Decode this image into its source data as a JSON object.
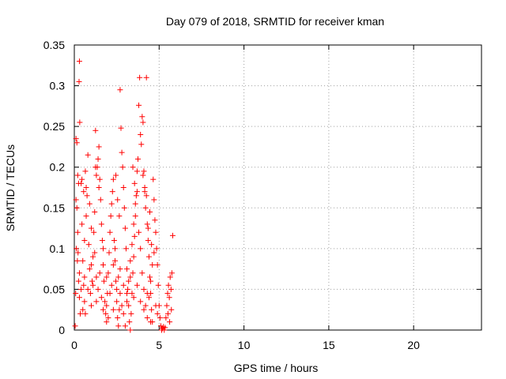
{
  "chart_data": {
    "type": "scatter",
    "title": "Day 079 of 2018, SRMTID for receiver kman",
    "xlabel": "GPS time / hours",
    "ylabel": "SRMTID / TECUs",
    "xlim": [
      0,
      24
    ],
    "ylim": [
      0,
      0.35
    ],
    "xticks": [
      0,
      5,
      10,
      15,
      20
    ],
    "xtick_labels": [
      "0",
      "5",
      "10",
      "15",
      "20"
    ],
    "yticks": [
      0,
      0.05,
      0.1,
      0.15,
      0.2,
      0.25,
      0.3,
      0.35
    ],
    "ytick_labels": [
      "0",
      "0.05",
      "0.1",
      "0.15",
      "0.2",
      "0.25",
      "0.3",
      "0.35"
    ],
    "grid": true,
    "marker": "plus",
    "marker_color": "#ff0000",
    "series": [
      {
        "name": "SRMTID",
        "points": [
          [
            0.05,
            0.005
          ],
          [
            0.1,
            0.235
          ],
          [
            0.15,
            0.23
          ],
          [
            0.2,
            0.19
          ],
          [
            0.25,
            0.18
          ],
          [
            0.3,
            0.33
          ],
          [
            0.28,
            0.305
          ],
          [
            0.32,
            0.255
          ],
          [
            0.1,
            0.16
          ],
          [
            0.15,
            0.15
          ],
          [
            0.2,
            0.12
          ],
          [
            0.12,
            0.1
          ],
          [
            0.18,
            0.085
          ],
          [
            0.25,
            0.06
          ],
          [
            0.3,
            0.04
          ],
          [
            0.35,
            0.02
          ],
          [
            0.08,
            0.045
          ],
          [
            0.22,
            0.095
          ],
          [
            0.4,
            0.18
          ],
          [
            0.45,
            0.13
          ],
          [
            0.5,
            0.085
          ],
          [
            0.55,
            0.055
          ],
          [
            0.6,
            0.035
          ],
          [
            0.65,
            0.02
          ],
          [
            0.7,
            0.175
          ],
          [
            0.75,
            0.165
          ],
          [
            0.8,
            0.215
          ],
          [
            0.85,
            0.105
          ],
          [
            0.9,
            0.075
          ],
          [
            0.95,
            0.045
          ],
          [
            1.0,
            0.03
          ],
          [
            1.05,
            0.06
          ],
          [
            1.1,
            0.09
          ],
          [
            1.15,
            0.12
          ],
          [
            1.2,
            0.145
          ],
          [
            1.25,
            0.245
          ],
          [
            1.3,
            0.19
          ],
          [
            1.35,
            0.2
          ],
          [
            1.4,
            0.21
          ],
          [
            1.45,
            0.225
          ],
          [
            1.5,
            0.185
          ],
          [
            1.55,
            0.16
          ],
          [
            1.6,
            0.13
          ],
          [
            1.65,
            0.11
          ],
          [
            1.7,
            0.08
          ],
          [
            1.75,
            0.06
          ],
          [
            1.8,
            0.035
          ],
          [
            1.85,
            0.02
          ],
          [
            1.9,
            0.01
          ],
          [
            1.95,
            0.045
          ],
          [
            2.0,
            0.07
          ],
          [
            2.05,
            0.095
          ],
          [
            2.1,
            0.12
          ],
          [
            2.15,
            0.14
          ],
          [
            2.2,
            0.155
          ],
          [
            2.25,
            0.17
          ],
          [
            2.3,
            0.185
          ],
          [
            2.35,
            0.11
          ],
          [
            2.4,
            0.085
          ],
          [
            2.45,
            0.06
          ],
          [
            2.5,
            0.035
          ],
          [
            2.55,
            0.015
          ],
          [
            2.6,
            0.005
          ],
          [
            2.65,
            0.025
          ],
          [
            2.7,
            0.295
          ],
          [
            2.75,
            0.248
          ],
          [
            2.8,
            0.218
          ],
          [
            2.85,
            0.2
          ],
          [
            2.9,
            0.175
          ],
          [
            2.95,
            0.15
          ],
          [
            3.0,
            0.125
          ],
          [
            3.05,
            0.1
          ],
          [
            3.1,
            0.075
          ],
          [
            3.15,
            0.05
          ],
          [
            3.2,
            0.03
          ],
          [
            3.25,
            0.01
          ],
          [
            3.3,
            0.0
          ],
          [
            3.35,
            0.02
          ],
          [
            3.4,
            0.045
          ],
          [
            3.45,
            0.07
          ],
          [
            3.5,
            0.09
          ],
          [
            3.55,
            0.115
          ],
          [
            3.6,
            0.14
          ],
          [
            3.65,
            0.165
          ],
          [
            3.7,
            0.195
          ],
          [
            3.75,
            0.21
          ],
          [
            3.8,
            0.276
          ],
          [
            3.85,
            0.31
          ],
          [
            3.9,
            0.24
          ],
          [
            3.95,
            0.228
          ],
          [
            4.0,
            0.262
          ],
          [
            4.05,
            0.255
          ],
          [
            4.1,
            0.195
          ],
          [
            4.15,
            0.175
          ],
          [
            4.2,
            0.15
          ],
          [
            4.25,
            0.31
          ],
          [
            4.3,
            0.13
          ],
          [
            4.35,
            0.11
          ],
          [
            4.4,
            0.09
          ],
          [
            4.45,
            0.065
          ],
          [
            4.5,
            0.045
          ],
          [
            4.55,
            0.025
          ],
          [
            4.6,
            0.01
          ],
          [
            4.65,
            0.185
          ],
          [
            4.7,
            0.16
          ],
          [
            4.75,
            0.135
          ],
          [
            4.8,
            0.12
          ],
          [
            4.85,
            0.1
          ],
          [
            4.9,
            0.08
          ],
          [
            4.95,
            0.055
          ],
          [
            5.0,
            0.03
          ],
          [
            5.05,
            0.015
          ],
          [
            5.1,
            0.005
          ],
          [
            5.15,
            0.0
          ],
          [
            5.2,
            0.002
          ],
          [
            5.25,
            0.004
          ],
          [
            5.3,
            0.0
          ],
          [
            5.35,
            0.003
          ],
          [
            5.4,
            0.015
          ],
          [
            5.45,
            0.03
          ],
          [
            5.5,
            0.045
          ],
          [
            5.55,
            0.055
          ],
          [
            5.6,
            0.04
          ],
          [
            5.65,
            0.065
          ],
          [
            5.7,
            0.05
          ],
          [
            5.75,
            0.07
          ],
          [
            5.8,
            0.116
          ],
          [
            5.72,
            0.025
          ],
          [
            5.62,
            0.01
          ],
          [
            5.52,
            0.02
          ],
          [
            0.6,
            0.11
          ],
          [
            0.7,
            0.14
          ],
          [
            0.9,
            0.155
          ],
          [
            1.0,
            0.125
          ],
          [
            1.2,
            0.095
          ],
          [
            1.3,
            0.065
          ],
          [
            1.4,
            0.05
          ],
          [
            1.6,
            0.04
          ],
          [
            1.7,
            0.025
          ],
          [
            1.9,
            0.03
          ],
          [
            2.0,
            0.015
          ],
          [
            2.2,
            0.055
          ],
          [
            2.3,
            0.08
          ],
          [
            2.4,
            0.1
          ],
          [
            2.6,
            0.065
          ],
          [
            2.7,
            0.045
          ],
          [
            2.8,
            0.03
          ],
          [
            2.9,
            0.02
          ],
          [
            3.0,
            0.005
          ],
          [
            3.1,
            0.035
          ],
          [
            3.2,
            0.06
          ],
          [
            3.3,
            0.085
          ],
          [
            3.4,
            0.105
          ],
          [
            3.5,
            0.13
          ],
          [
            3.6,
            0.155
          ],
          [
            3.7,
            0.17
          ],
          [
            3.8,
            0.12
          ],
          [
            3.9,
            0.1
          ],
          [
            4.0,
            0.07
          ],
          [
            4.1,
            0.05
          ],
          [
            4.2,
            0.03
          ],
          [
            4.3,
            0.015
          ],
          [
            4.4,
            0.04
          ],
          [
            4.5,
            0.06
          ],
          [
            4.6,
            0.08
          ],
          [
            4.7,
            0.095
          ],
          [
            4.8,
            0.03
          ],
          [
            4.9,
            0.02
          ],
          [
            0.3,
            0.07
          ],
          [
            0.4,
            0.05
          ],
          [
            0.5,
            0.025
          ],
          [
            0.6,
            0.065
          ],
          [
            0.8,
            0.05
          ],
          [
            1.0,
            0.08
          ],
          [
            1.1,
            0.055
          ],
          [
            1.3,
            0.035
          ],
          [
            1.5,
            0.07
          ],
          [
            1.7,
            0.1
          ],
          [
            1.9,
            0.065
          ],
          [
            2.1,
            0.045
          ],
          [
            2.3,
            0.025
          ],
          [
            2.5,
            0.05
          ],
          [
            2.7,
            0.075
          ],
          [
            2.9,
            0.055
          ],
          [
            3.1,
            0.045
          ],
          [
            3.3,
            0.065
          ],
          [
            3.5,
            0.04
          ],
          [
            3.7,
            0.055
          ],
          [
            3.9,
            0.035
          ],
          [
            4.1,
            0.025
          ],
          [
            4.3,
            0.045
          ],
          [
            4.5,
            0.01
          ],
          [
            0.45,
            0.185
          ],
          [
            0.55,
            0.17
          ],
          [
            0.65,
            0.195
          ],
          [
            1.25,
            0.2
          ],
          [
            1.45,
            0.175
          ],
          [
            2.45,
            0.19
          ],
          [
            2.55,
            0.16
          ],
          [
            2.65,
            0.14
          ],
          [
            3.45,
            0.2
          ],
          [
            3.55,
            0.18
          ],
          [
            4.05,
            0.19
          ],
          [
            4.15,
            0.17
          ],
          [
            4.25,
            0.165
          ],
          [
            4.35,
            0.125
          ],
          [
            4.45,
            0.145
          ],
          [
            4.55,
            0.105
          ]
        ]
      }
    ]
  }
}
